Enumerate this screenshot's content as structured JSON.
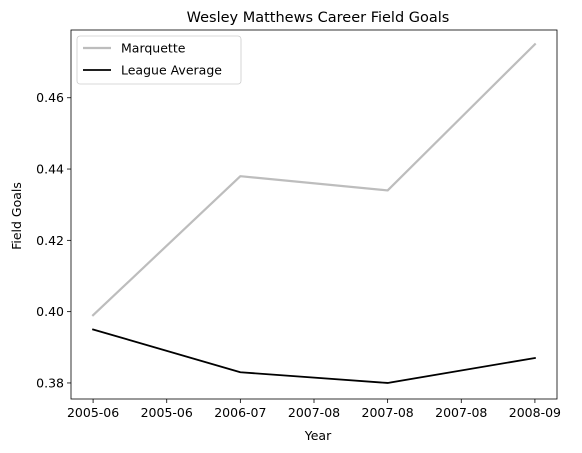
{
  "chart_data": {
    "type": "line",
    "title": "Wesley Matthews Career Field Goals",
    "xlabel": "Year",
    "ylabel": "Field Goals",
    "x_tick_labels": [
      "2005-06",
      "2005-06",
      "2006-07",
      "2007-08",
      "2007-08",
      "2007-08",
      "2008-09"
    ],
    "y_tick_labels": [
      "0.38",
      "0.40",
      "0.42",
      "0.44",
      "0.46"
    ],
    "y_ticks": [
      0.38,
      0.4,
      0.42,
      0.44,
      0.46
    ],
    "ylim": [
      0.3755,
      0.479
    ],
    "xlim": [
      -0.15,
      3.15
    ],
    "x_ticks": [
      0,
      0.5,
      1,
      1.5,
      2,
      2.5,
      3
    ],
    "legend_position": "upper-left",
    "grid": false,
    "series": [
      {
        "name": "Marquette",
        "color": "#bdbdbd",
        "x": [
          "2005-06",
          "2006-07",
          "2007-08",
          "2008-09"
        ],
        "values": [
          0.399,
          0.438,
          0.434,
          0.475
        ]
      },
      {
        "name": "League Average",
        "color": "#000000",
        "x": [
          "2005-06",
          "2006-07",
          "2007-08",
          "2008-09"
        ],
        "values": [
          0.395,
          0.383,
          0.38,
          0.387
        ]
      }
    ]
  }
}
